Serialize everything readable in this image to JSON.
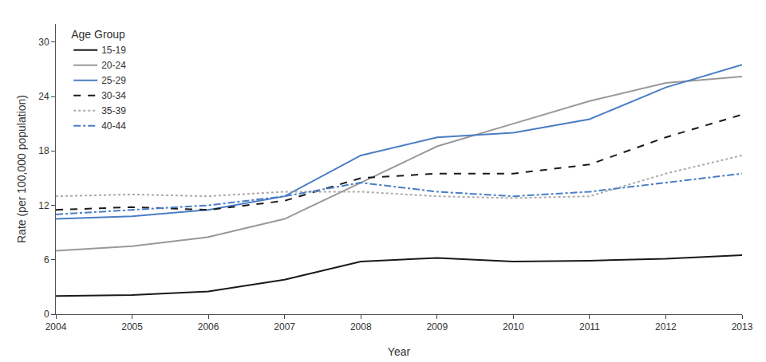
{
  "chart_data": {
    "type": "line",
    "x_label": "Year",
    "y_label": "Rate (per 100,000 population)",
    "legend_title": "Age Group",
    "x": [
      2004,
      2005,
      2006,
      2007,
      2008,
      2009,
      2010,
      2011,
      2012,
      2013
    ],
    "series": [
      {
        "name": "15-19",
        "color": "#1a1a1a",
        "line_style": "solid",
        "values": [
          2.0,
          2.1,
          2.5,
          3.8,
          5.8,
          6.2,
          5.8,
          5.9,
          6.1,
          6.5
        ]
      },
      {
        "name": "20-24",
        "color": "#999999",
        "line_style": "solid",
        "values": [
          7.0,
          7.5,
          8.5,
          10.5,
          14.5,
          18.5,
          21.0,
          23.5,
          25.5,
          26.2
        ]
      },
      {
        "name": "25-29",
        "color": "#4a7dc4",
        "line_style": "solid",
        "values": [
          10.5,
          10.8,
          11.5,
          13.0,
          17.5,
          19.5,
          20.0,
          21.5,
          25.0,
          27.5
        ]
      },
      {
        "name": "30-34",
        "color": "#1a1a1a",
        "line_style": "dashed",
        "values": [
          11.5,
          11.8,
          11.5,
          12.5,
          15.0,
          15.5,
          15.5,
          16.5,
          19.5,
          22.0
        ]
      },
      {
        "name": "35-39",
        "color": "#aaaaaa",
        "line_style": "dotted",
        "values": [
          13.0,
          13.2,
          13.0,
          13.5,
          13.5,
          13.0,
          12.8,
          13.0,
          15.5,
          17.5
        ]
      },
      {
        "name": "40-44",
        "color": "#4a7dc4",
        "line_style": "dashdot",
        "values": [
          11.0,
          11.5,
          12.0,
          13.0,
          14.5,
          13.5,
          13.0,
          13.5,
          14.5,
          15.5
        ]
      }
    ],
    "xlim": [
      2004,
      2013
    ],
    "xticks": [
      2004,
      2005,
      2006,
      2007,
      2008,
      2009,
      2010,
      2011,
      2012,
      2013
    ],
    "ylim": [
      0,
      32
    ],
    "yticks": [
      0,
      6,
      12,
      18,
      24,
      30
    ],
    "grid": false,
    "legend": "upper left"
  }
}
